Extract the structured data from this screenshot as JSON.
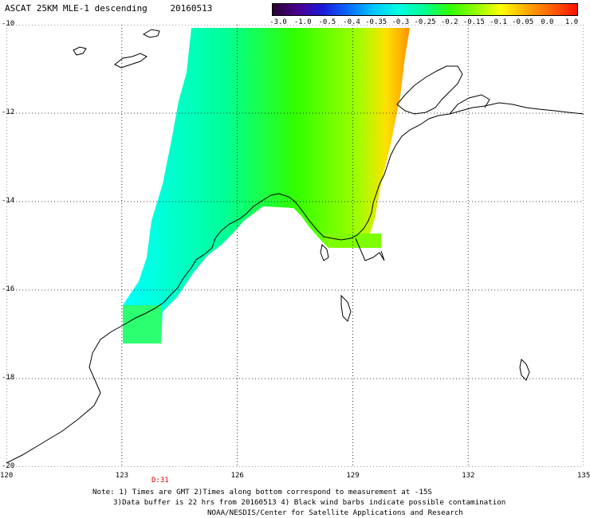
{
  "header": {
    "title": "ASCAT 25KM MLE-1 descending",
    "date": "20160513"
  },
  "colorbar": {
    "labels": [
      "-3.0",
      "-1.0",
      "-0.5",
      "-0.4",
      "-0.35",
      "-0.3",
      "-0.25",
      "-0.2",
      "-0.15",
      "-0.1",
      "-0.05",
      "0.0",
      "1.0"
    ],
    "colors": [
      "#2a0033",
      "#4a0090",
      "#1a1adc",
      "#0a6cff",
      "#00c8ff",
      "#00ffe0",
      "#00ff90",
      "#30ff00",
      "#90ff00",
      "#ffff00",
      "#ffaa00",
      "#ff6000",
      "#ff1000"
    ]
  },
  "axes": {
    "x_ticks": [
      "120",
      "123",
      "126",
      "129",
      "132",
      "135"
    ],
    "y_ticks": [
      "-10",
      "-12",
      "-14",
      "-16",
      "-18",
      "-20"
    ],
    "lon_range": [
      120,
      135
    ],
    "lat_range": [
      -20,
      -10
    ]
  },
  "pass_label": "D:31",
  "notes": {
    "line1": "Note: 1) Times are GMT 2)Times along bottom correspond to measurement at -15S",
    "line2": "3)Data buffer is 22 hrs from 20160513 4) Black wind barbs indicate possible contamination",
    "line3": "NOAA/NESDIS/Center for Satellite Applications and Research"
  }
}
